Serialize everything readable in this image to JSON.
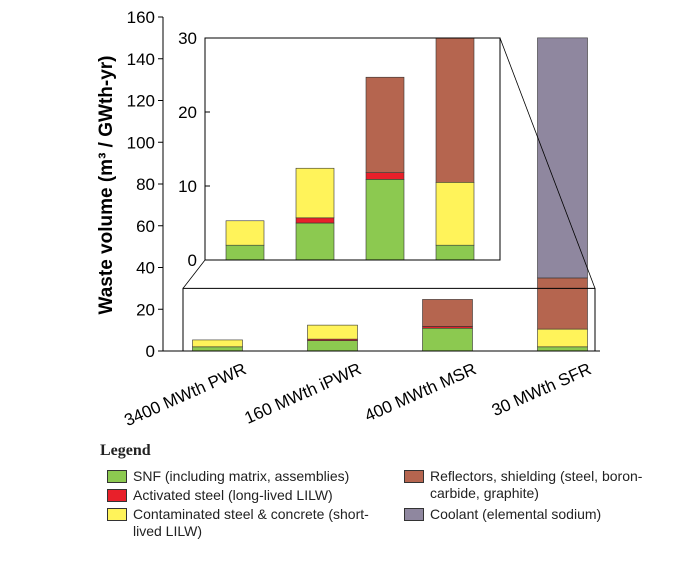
{
  "chart_data": {
    "type": "stacked-bar",
    "ylabel": "Waste volume (m³ / GWth-yr)",
    "categories": [
      "3400 MWth PWR",
      "160 MWth iPWR",
      "400 MWth MSR",
      "30 MWth SFR"
    ],
    "series": [
      {
        "name": "SNF (including matrix, assemblies)",
        "color": "#8cc950",
        "values": [
          2.0,
          5.0,
          10.9,
          2.0
        ]
      },
      {
        "name": "Activated steel (long-lived LILW)",
        "color": "#e8202a",
        "values": [
          0,
          0.7,
          0.9,
          0
        ]
      },
      {
        "name": "Contaminated steel & concrete (short-lived LILW)",
        "color": "#fff35a",
        "values": [
          3.3,
          6.7,
          0,
          8.5
        ]
      },
      {
        "name": "Reflectors, shielding (steel, boron-carbide, graphite)",
        "color": "#b5654f",
        "values": [
          0,
          0,
          12.9,
          24.5
        ]
      },
      {
        "name": "Coolant (elemental sodium)",
        "color": "#8f879f",
        "values": [
          0,
          0,
          0,
          115
        ]
      }
    ],
    "ylim": [
      0,
      160
    ],
    "yticks": [
      0,
      20,
      40,
      60,
      80,
      100,
      120,
      140,
      160
    ],
    "inset": {
      "ylim": [
        0,
        30
      ],
      "yticks": [
        0,
        10,
        20,
        30
      ]
    },
    "legend_title": "Legend"
  }
}
